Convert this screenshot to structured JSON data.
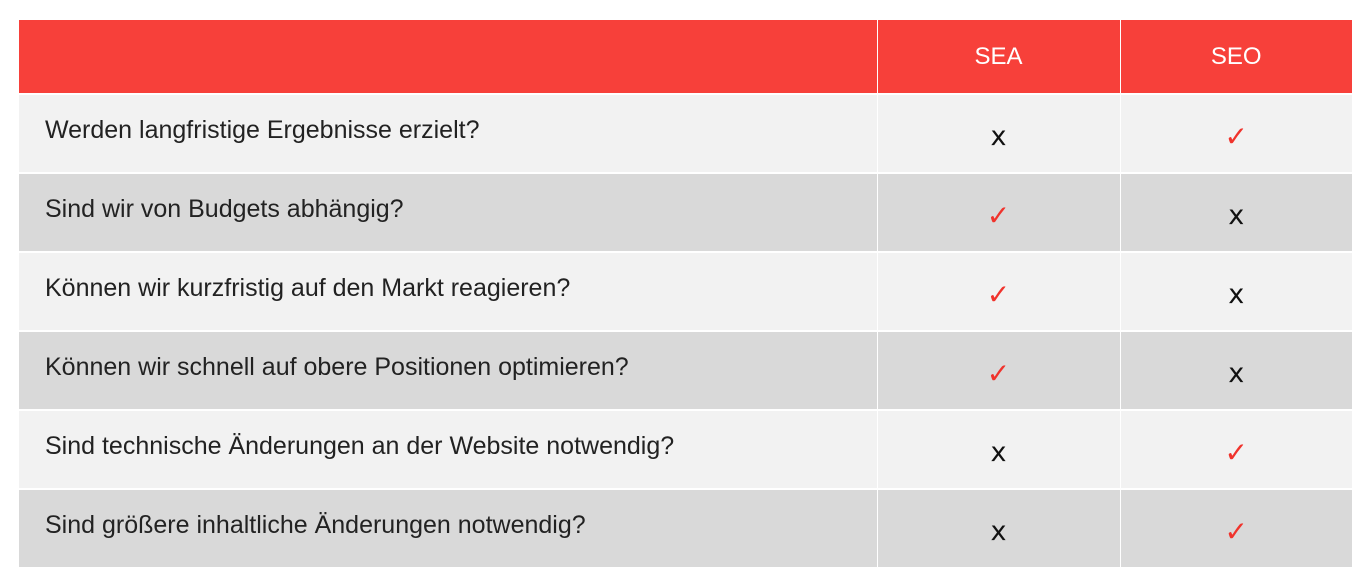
{
  "table": {
    "header": {
      "question": "",
      "col_sea": "SEA",
      "col_seo": "SEO"
    },
    "rows": [
      {
        "question": "Werden langfristige Ergebnisse erzielt?",
        "sea": "x",
        "seo": "✓"
      },
      {
        "question": "Sind wir von Budgets abhängig?",
        "sea": "✓",
        "seo": "x"
      },
      {
        "question": "Können wir kurzfristig auf den Markt reagieren?",
        "sea": "✓",
        "seo": "x"
      },
      {
        "question": "Können wir schnell auf obere Positionen optimieren?",
        "sea": "✓",
        "seo": "x"
      },
      {
        "question": "Sind technische Änderungen an der Website notwendig?",
        "sea": "x",
        "seo": "✓"
      },
      {
        "question": "Sind größere inhaltliche Änderungen notwendig?",
        "sea": "x",
        "seo": "✓"
      }
    ]
  },
  "colors": {
    "header_bg": "#f7403a",
    "row_light": "#f2f2f2",
    "row_dark": "#d9d9d9",
    "check": "#f0332c"
  },
  "icons": {
    "yes": "check-mark-icon",
    "no": "x-mark-icon"
  }
}
